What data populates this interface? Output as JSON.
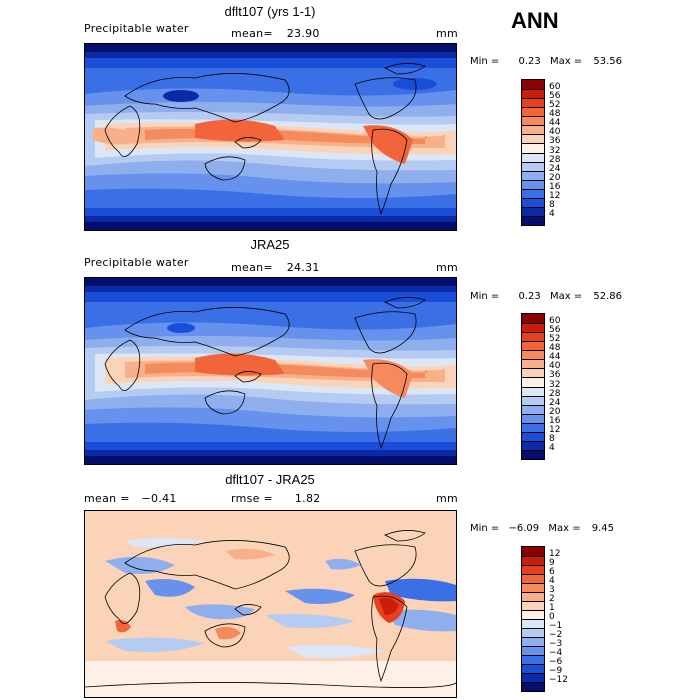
{
  "season": "ANN",
  "panels": [
    {
      "title": "dflt107 (yrs 1-1)",
      "left_label": "Precipitable water",
      "mid_label": "mean=",
      "mid_value": "23.90",
      "units": "mm",
      "min_label": "Min =",
      "min_value": "0.23",
      "max_label": "Max =",
      "max_value": "53.56",
      "type": "absolute"
    },
    {
      "title": "JRA25",
      "left_label": "Precipitable water",
      "mid_label": "mean=",
      "mid_value": "24.31",
      "units": "mm",
      "min_label": "Min =",
      "min_value": "0.23",
      "max_label": "Max =",
      "max_value": "52.86",
      "type": "absolute"
    },
    {
      "title": "dflt107 - JRA25",
      "left_label": "mean =",
      "left_value": "−0.41",
      "mid_label": "rmse =",
      "mid_value": "1.82",
      "units": "mm",
      "min_label": "Min =",
      "min_value": "−6.09",
      "max_label": "Max =",
      "max_value": "9.45",
      "type": "difference"
    }
  ],
  "colorbars": {
    "absolute": {
      "levels": [
        "60",
        "56",
        "52",
        "48",
        "44",
        "40",
        "36",
        "32",
        "28",
        "24",
        "20",
        "16",
        "12",
        "8",
        "4"
      ],
      "colors": [
        "#8b0000",
        "#c81e0a",
        "#e8401c",
        "#f2653a",
        "#f58a5c",
        "#f8b08a",
        "#fbd3b8",
        "#fdf0e6",
        "#dbe6f7",
        "#b6cbf2",
        "#8eaeee",
        "#6691ec",
        "#3a6fe6",
        "#1a4ed8",
        "#0a2aa6",
        "#050e6e"
      ]
    },
    "difference": {
      "levels": [
        "12",
        "9",
        "6",
        "4",
        "3",
        "2",
        "1",
        "0",
        "−1",
        "−2",
        "−3",
        "−4",
        "−6",
        "−9",
        "−12"
      ],
      "colors": [
        "#8b0000",
        "#c81e0a",
        "#e8401c",
        "#f2653a",
        "#f58a5c",
        "#f8b08a",
        "#fbd3b8",
        "#fdf0e6",
        "#dbe6f7",
        "#b6cbf2",
        "#8eaeee",
        "#6691ec",
        "#3a6fe6",
        "#1a4ed8",
        "#0a2aa6",
        "#050e6e"
      ]
    }
  }
}
